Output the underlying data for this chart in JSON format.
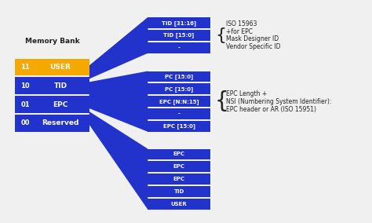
{
  "bg_color": "#f0f0f0",
  "blue": "#2233cc",
  "gold": "#f5a800",
  "white_text": "#ffffff",
  "dark_text": "#222222",
  "memory_bank_title": "Memory Bank",
  "memory_bank_rows": [
    {
      "code": "11",
      "label": "USER",
      "highlight": true
    },
    {
      "code": "10",
      "label": "TID",
      "highlight": false
    },
    {
      "code": "01",
      "label": "EPC",
      "highlight": false
    },
    {
      "code": "00",
      "label": "Reserved",
      "highlight": false
    }
  ],
  "top_blocks": [
    "-",
    "TID [15:0]",
    "TID [31:16]"
  ],
  "mid_blocks": [
    "EPC [15:0]",
    "-",
    "EPC [N:N:15]",
    "PC [15:0]",
    "PC [15:0]"
  ],
  "bot_blocks": [
    "USER",
    "TID",
    "EPC",
    "EPC",
    "EPC"
  ],
  "right_text_top": [
    "ISO 15963",
    "+for EPC",
    "Mask Designer ID",
    "Vendor Specific ID"
  ],
  "right_text_bot": [
    "EPC Length +",
    "NSI (Numbering System Identifier):",
    "EPC header or AR (ISO 15951)"
  ]
}
